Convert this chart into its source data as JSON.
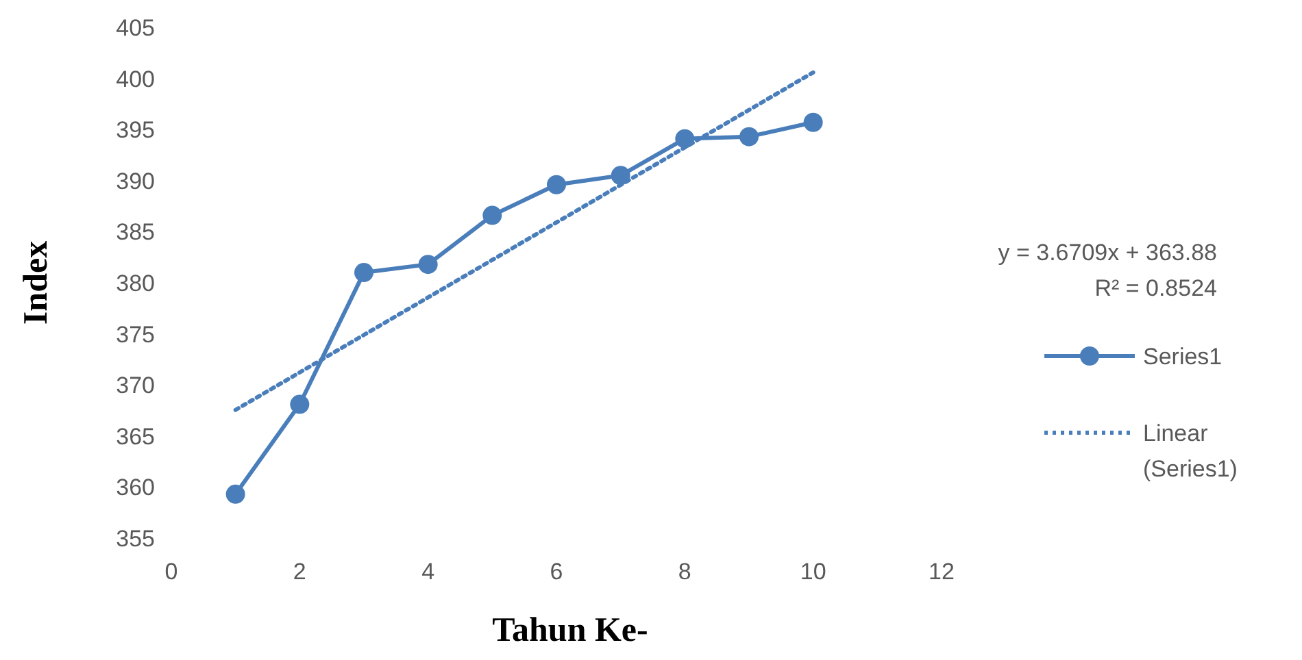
{
  "chart_data": {
    "type": "line",
    "xlabel": "Tahun Ke-",
    "ylabel": "Index",
    "xlim": [
      0,
      12
    ],
    "xticks": [
      0,
      2,
      4,
      6,
      8,
      10,
      12
    ],
    "ylim": [
      355,
      405
    ],
    "yticks": [
      355,
      360,
      365,
      370,
      375,
      380,
      385,
      390,
      395,
      400,
      405
    ],
    "x": [
      1,
      2,
      3,
      4,
      5,
      6,
      7,
      8,
      9,
      10
    ],
    "series": [
      {
        "name": "Series1",
        "color": "#4a7ebb",
        "values": [
          359.3,
          368.1,
          381.0,
          381.8,
          386.6,
          389.6,
          390.5,
          394.1,
          394.3,
          395.7
        ],
        "marker": "circle",
        "line_style": "solid"
      },
      {
        "name": "Linear (Series1)",
        "color": "#4a7ebb",
        "type": "line",
        "x": [
          1,
          10
        ],
        "values": [
          367.55,
          400.59
        ],
        "marker": "none",
        "line_style": "dotted"
      }
    ],
    "annotations": [
      "y = 3.6709x + 363.88",
      "R² = 0.8524"
    ],
    "legend": "right",
    "grid": false
  }
}
